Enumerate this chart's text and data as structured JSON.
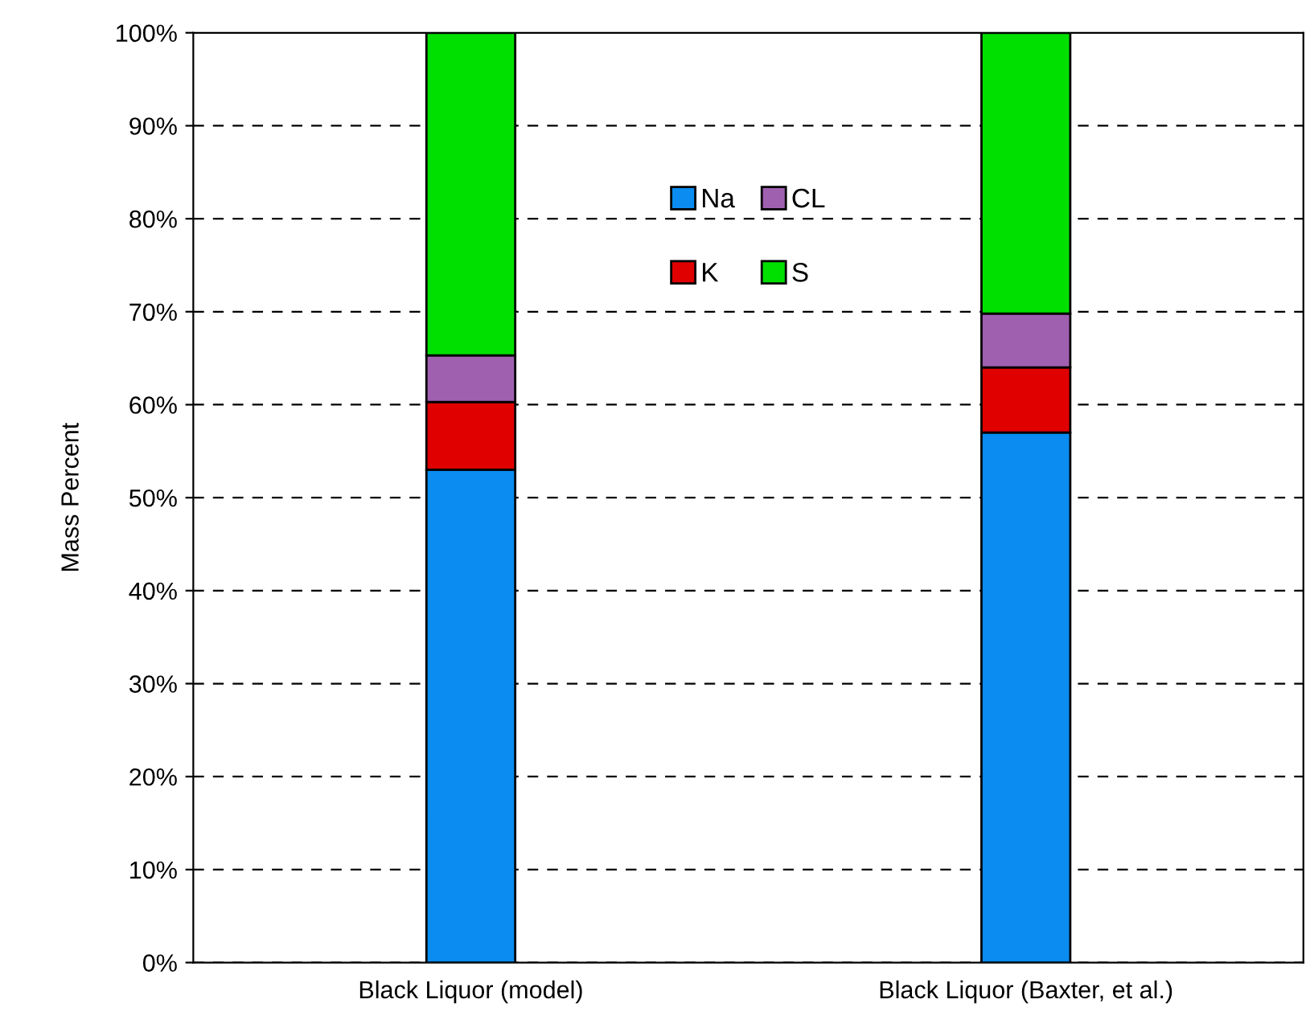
{
  "chart_data": {
    "type": "bar",
    "stacked": true,
    "ylabel": "Mass Percent",
    "categories": [
      "Black Liquor (model)",
      "Black Liquor (Baxter, et al.)"
    ],
    "series": [
      {
        "name": "Na",
        "color": "#0a8cf0",
        "values": [
          53,
          57
        ]
      },
      {
        "name": "K",
        "color": "#e00000",
        "values": [
          7.3,
          7
        ]
      },
      {
        "name": "CL",
        "color": "#a060b0",
        "values": [
          5,
          5.8
        ]
      },
      {
        "name": "S",
        "color": "#00e000",
        "values": [
          34.7,
          30.2
        ]
      }
    ],
    "ylim": [
      0,
      100
    ],
    "yticks": [
      {
        "value": 0,
        "label": "0%"
      },
      {
        "value": 10,
        "label": "10%"
      },
      {
        "value": 20,
        "label": "20%"
      },
      {
        "value": 30,
        "label": "30%"
      },
      {
        "value": 40,
        "label": "40%"
      },
      {
        "value": 50,
        "label": "50%"
      },
      {
        "value": 60,
        "label": "60%"
      },
      {
        "value": 70,
        "label": "70%"
      },
      {
        "value": 80,
        "label": "80%"
      },
      {
        "value": 90,
        "label": "90%"
      },
      {
        "value": 100,
        "label": "100%"
      }
    ],
    "grid": "y",
    "legend": "top"
  }
}
